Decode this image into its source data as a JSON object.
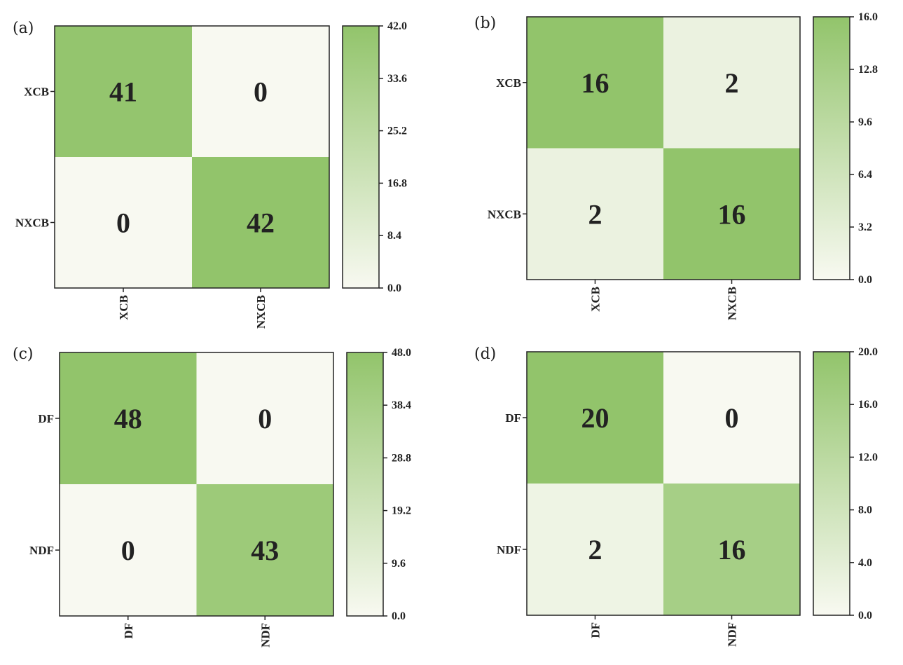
{
  "colors": {
    "low": "#f8f9f1",
    "high": "#92c46b",
    "text": "#222222"
  },
  "chart_data": [
    {
      "type": "heatmap",
      "panel": "(a)",
      "rows": [
        "XCB",
        "NXCB"
      ],
      "cols": [
        "XCB",
        "NXCB"
      ],
      "values": [
        [
          41,
          0
        ],
        [
          0,
          42
        ]
      ],
      "vmin": 0,
      "vmax": 42,
      "colorbar_ticks": [
        "0.0",
        "8.4",
        "16.8",
        "25.2",
        "33.6",
        "42.0"
      ]
    },
    {
      "type": "heatmap",
      "panel": "(b)",
      "rows": [
        "XCB",
        "NXCB"
      ],
      "cols": [
        "XCB",
        "NXCB"
      ],
      "values": [
        [
          16,
          2
        ],
        [
          2,
          16
        ]
      ],
      "vmin": 0,
      "vmax": 16,
      "colorbar_ticks": [
        "0.0",
        "3.2",
        "6.4",
        "9.6",
        "12.8",
        "16.0"
      ]
    },
    {
      "type": "heatmap",
      "panel": "(c)",
      "rows": [
        "DF",
        "NDF"
      ],
      "cols": [
        "DF",
        "NDF"
      ],
      "values": [
        [
          48,
          0
        ],
        [
          0,
          43
        ]
      ],
      "vmin": 0,
      "vmax": 48,
      "colorbar_ticks": [
        "0.0",
        "9.6",
        "19.2",
        "28.8",
        "38.4",
        "48.0"
      ]
    },
    {
      "type": "heatmap",
      "panel": "(d)",
      "rows": [
        "DF",
        "NDF"
      ],
      "cols": [
        "DF",
        "NDF"
      ],
      "values": [
        [
          20,
          0
        ],
        [
          2,
          16
        ]
      ],
      "vmin": 0,
      "vmax": 20,
      "colorbar_ticks": [
        "0.0",
        "4.0",
        "8.0",
        "12.0",
        "16.0",
        "20.0"
      ]
    }
  ]
}
